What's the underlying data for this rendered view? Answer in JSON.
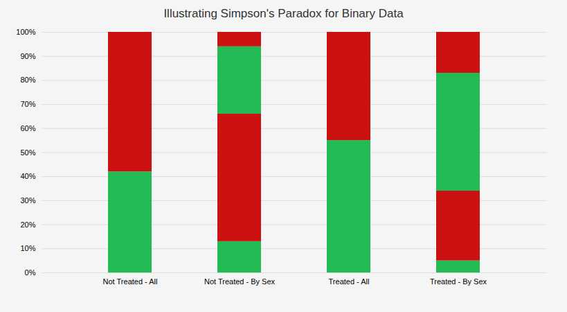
{
  "chart_data": {
    "type": "bar",
    "stacked": true,
    "title": "Illustrating Simpson's Paradox for Binary Data",
    "categories": [
      "Not Treated - All",
      "Not Treated - By Sex",
      "Treated - All",
      "Treated - By Sex"
    ],
    "series": [
      {
        "color": "#22bb55",
        "values": [
          0.42,
          0.13,
          0.55,
          0.05
        ]
      },
      {
        "color": "#cc1111",
        "values": [
          0.58,
          0.53,
          0.45,
          0.29
        ]
      },
      {
        "color": "#22bb55",
        "values": [
          null,
          0.28,
          null,
          0.49
        ]
      },
      {
        "color": "#cc1111",
        "values": [
          null,
          0.06,
          null,
          0.17
        ]
      }
    ],
    "ylim": [
      0,
      1.0
    ],
    "yticks": [
      {
        "value": 0.0,
        "label": "0%"
      },
      {
        "value": 0.1,
        "label": "10%"
      },
      {
        "value": 0.2,
        "label": "20%"
      },
      {
        "value": 0.3,
        "label": "30%"
      },
      {
        "value": 0.4,
        "label": "40%"
      },
      {
        "value": 0.5,
        "label": "50%"
      },
      {
        "value": 0.6,
        "label": "60%"
      },
      {
        "value": 0.7,
        "label": "70%"
      },
      {
        "value": 0.8,
        "label": "80%"
      },
      {
        "value": 0.9,
        "label": "90%"
      },
      {
        "value": 1.0,
        "label": "100%"
      }
    ],
    "grid": true
  }
}
